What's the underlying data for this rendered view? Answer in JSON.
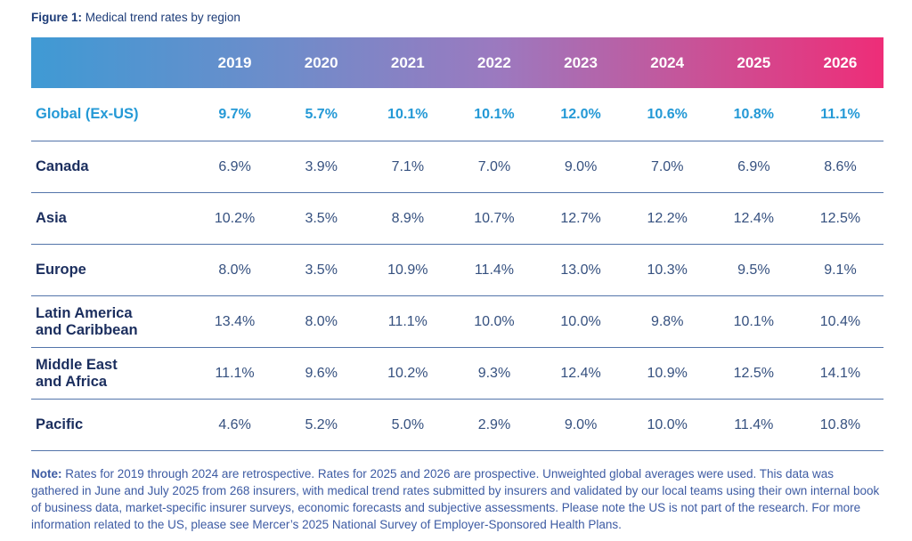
{
  "figure": {
    "label": "Figure 1:",
    "caption": " Medical trend rates by region"
  },
  "table": {
    "region_header": "",
    "columns": [
      "2019",
      "2020",
      "2021",
      "2022",
      "2023",
      "2024",
      "2025",
      "2026"
    ],
    "rows": [
      {
        "label": "Global (Ex-US)",
        "highlight": true,
        "values": [
          "9.7%",
          "5.7%",
          "10.1%",
          "10.1%",
          "12.0%",
          "10.6%",
          "10.8%",
          "11.1%"
        ]
      },
      {
        "label": "Canada",
        "highlight": false,
        "values": [
          "6.9%",
          "3.9%",
          "7.1%",
          "7.0%",
          "9.0%",
          "7.0%",
          "6.9%",
          "8.6%"
        ]
      },
      {
        "label": "Asia",
        "highlight": false,
        "values": [
          "10.2%",
          "3.5%",
          "8.9%",
          "10.7%",
          "12.7%",
          "12.2%",
          "12.4%",
          "12.5%"
        ]
      },
      {
        "label": "Europe",
        "highlight": false,
        "values": [
          "8.0%",
          "3.5%",
          "10.9%",
          "11.4%",
          "13.0%",
          "10.3%",
          "9.5%",
          "9.1%"
        ]
      },
      {
        "label": "Latin America\nand Caribbean",
        "highlight": false,
        "values": [
          "13.4%",
          "8.0%",
          "11.1%",
          "10.0%",
          "10.0%",
          "9.8%",
          "10.1%",
          "10.4%"
        ]
      },
      {
        "label": "Middle East\nand Africa",
        "highlight": false,
        "values": [
          "11.1%",
          "9.6%",
          "10.2%",
          "9.3%",
          "12.4%",
          "10.9%",
          "12.5%",
          "14.1%"
        ]
      },
      {
        "label": "Pacific",
        "highlight": false,
        "values": [
          "4.6%",
          "5.2%",
          "5.0%",
          "2.9%",
          "9.0%",
          "10.0%",
          "11.4%",
          "10.8%"
        ]
      }
    ]
  },
  "note": {
    "label": "Note:",
    "text": " Rates for 2019 through 2024 are retrospective. Rates for 2025 and 2026 are prospective. Unweighted global averages were used. This data was gathered in June and July 2025 from 268 insurers, with medical trend rates submitted by insurers and validated by our local teams using their own internal book of business data, market-specific insurer surveys, economic forecasts and subjective assessments. Please note the US is not part of the research. For more information related to the US, please see Mercer’s 2025 National Survey of Employer-Sponsored Health Plans."
  },
  "colors": {
    "g0": "#3f9ad4",
    "g1": "#6f8cca",
    "g2": "#9c79bf",
    "g3": "#cc4f94",
    "g4": "#ee2d78",
    "highlight_blue": "#2499d6",
    "label_navy": "#1b2e5e",
    "value_navy": "#35507f",
    "divider": "#5374aa",
    "title_navy": "#1d3c78",
    "note_blue": "#3d5ba3"
  },
  "chart_data": {
    "type": "table",
    "title": "Figure 1: Medical trend rates by region",
    "categories": [
      "2019",
      "2020",
      "2021",
      "2022",
      "2023",
      "2024",
      "2025",
      "2026"
    ],
    "series": [
      {
        "name": "Global (Ex-US)",
        "values": [
          9.7,
          5.7,
          10.1,
          10.1,
          12.0,
          10.6,
          10.8,
          11.1
        ]
      },
      {
        "name": "Canada",
        "values": [
          6.9,
          3.9,
          7.1,
          7.0,
          9.0,
          7.0,
          6.9,
          8.6
        ]
      },
      {
        "name": "Asia",
        "values": [
          10.2,
          3.5,
          8.9,
          10.7,
          12.7,
          12.2,
          12.4,
          12.5
        ]
      },
      {
        "name": "Europe",
        "values": [
          8.0,
          3.5,
          10.9,
          11.4,
          13.0,
          10.3,
          9.5,
          9.1
        ]
      },
      {
        "name": "Latin America and Caribbean",
        "values": [
          13.4,
          8.0,
          11.1,
          10.0,
          10.0,
          9.8,
          10.1,
          10.4
        ]
      },
      {
        "name": "Middle East and Africa",
        "values": [
          11.1,
          9.6,
          10.2,
          9.3,
          12.4,
          10.9,
          12.5,
          14.1
        ]
      },
      {
        "name": "Pacific",
        "values": [
          4.6,
          5.2,
          5.0,
          2.9,
          9.0,
          10.0,
          11.4,
          10.8
        ]
      }
    ],
    "units": "percent",
    "notes": "Rates for 2019-2024 retrospective; 2025-2026 prospective; unweighted global averages; US not included."
  }
}
